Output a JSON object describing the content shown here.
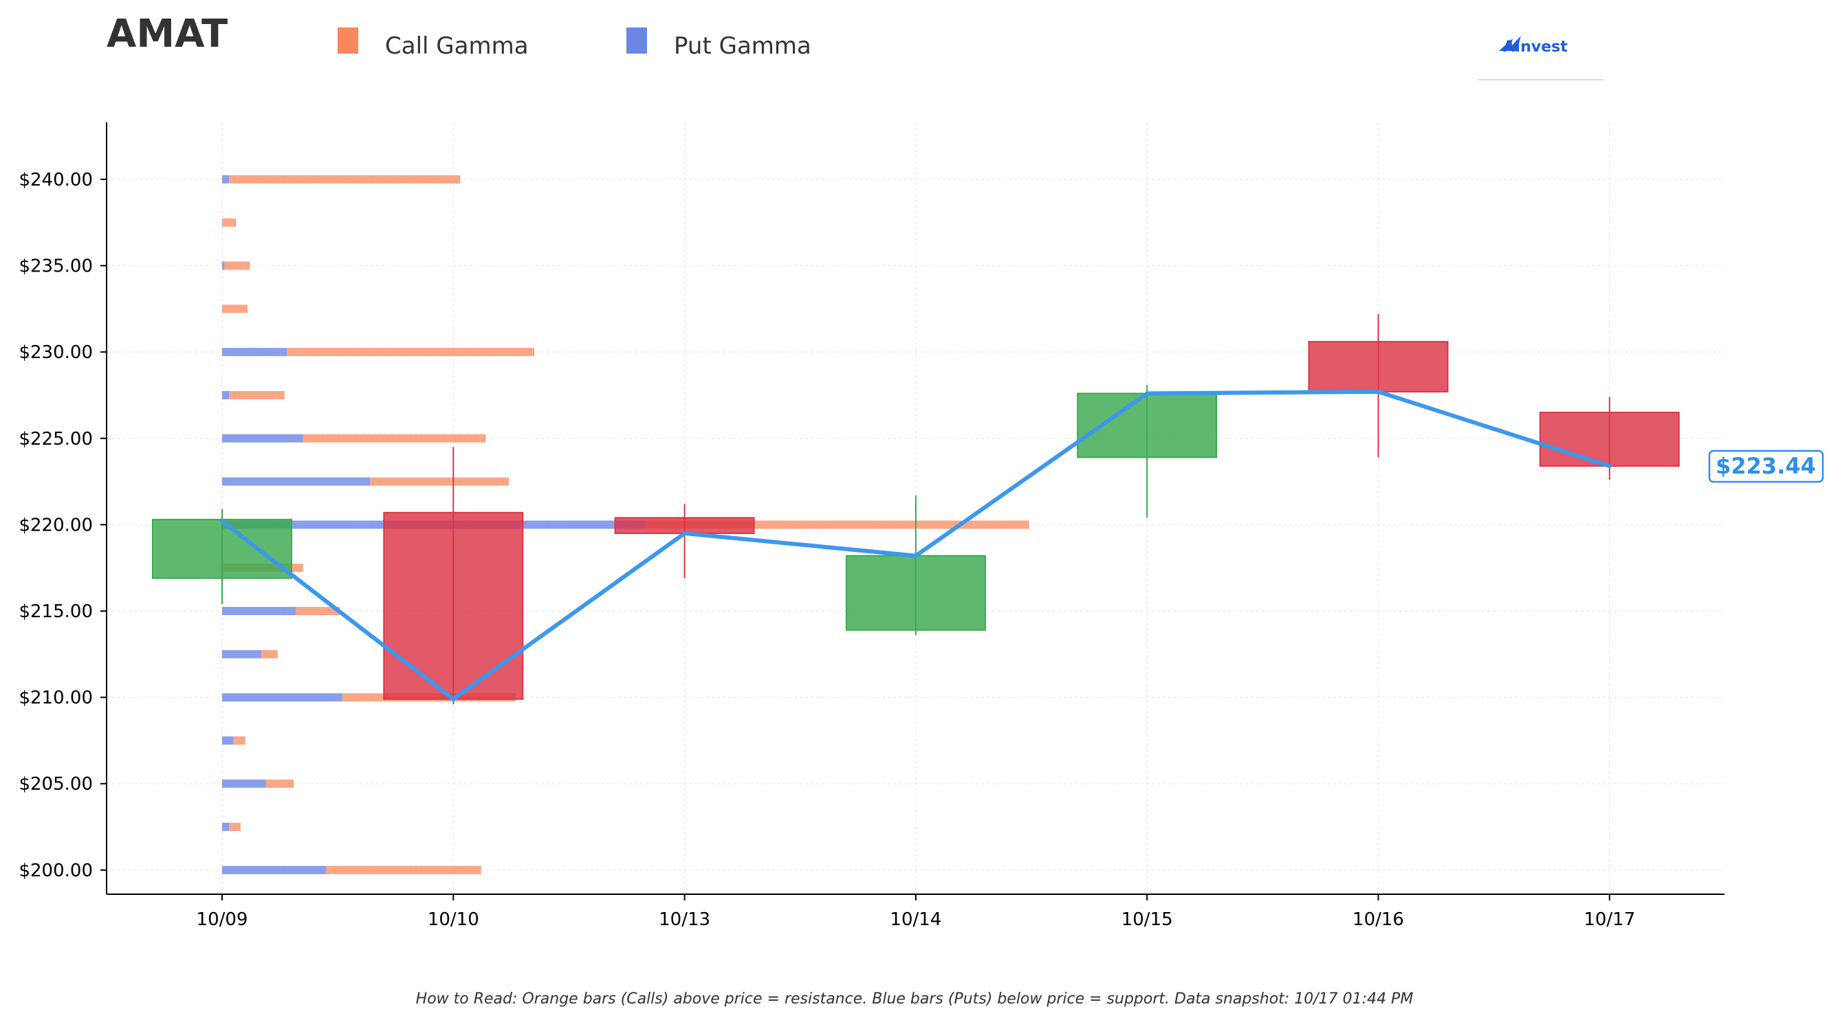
{
  "title": "AMAT",
  "legend": {
    "call_label": "Call Gamma",
    "put_label": "Put Gamma"
  },
  "logo": {
    "text": "AInvest"
  },
  "price_label": "$223.44",
  "footnote": "How to Read: Orange bars (Calls) above price = resistance. Blue bars (Puts) below price = support. Data snapshot: 10/17 01:44 PM",
  "colors": {
    "call": "#f9885c",
    "put": "#6b87e6",
    "up": "#3aaa4f",
    "down": "#dc3545",
    "line": "#3c98ee",
    "price_box": "#2e8fea"
  },
  "chart_data": {
    "type": "candlestick",
    "categories": [
      "10/09",
      "10/10",
      "10/13",
      "10/14",
      "10/15",
      "10/16",
      "10/17"
    ],
    "ylim": [
      198.6,
      243.3
    ],
    "yticks": [
      200,
      205,
      210,
      215,
      220,
      225,
      230,
      235,
      240
    ],
    "ytick_labels": [
      "$200.00",
      "$205.00",
      "$210.00",
      "$215.00",
      "$220.00",
      "$225.00",
      "$230.00",
      "$235.00",
      "$240.00"
    ],
    "candles": [
      {
        "date": "10/09",
        "open": 216.9,
        "close": 220.3,
        "high": 220.9,
        "low": 215.4
      },
      {
        "date": "10/10",
        "open": 220.7,
        "close": 209.9,
        "high": 224.5,
        "low": 209.6
      },
      {
        "date": "10/13",
        "open": 220.4,
        "close": 219.5,
        "high": 221.2,
        "low": 216.9
      },
      {
        "date": "10/14",
        "open": 213.9,
        "close": 218.2,
        "high": 221.7,
        "low": 213.6
      },
      {
        "date": "10/15",
        "open": 223.9,
        "close": 227.6,
        "high": 228.1,
        "low": 220.4
      },
      {
        "date": "10/16",
        "open": 230.6,
        "close": 227.7,
        "high": 232.2,
        "low": 223.9
      },
      {
        "date": "10/17",
        "open": 226.5,
        "close": 223.4,
        "high": 227.4,
        "low": 222.6
      }
    ],
    "close_line": {
      "x": [
        "10/09",
        "10/10",
        "10/13",
        "10/14",
        "10/15",
        "10/16",
        "10/17"
      ],
      "y": [
        220.2,
        209.9,
        219.5,
        218.2,
        227.6,
        227.7,
        223.4
      ]
    },
    "gamma": {
      "x_unit": "category widths from 10/09",
      "strikes": [
        240,
        237.5,
        235,
        232.5,
        230,
        227.5,
        225,
        222.5,
        220,
        217.5,
        215,
        212.5,
        210,
        207.5,
        205,
        202.5,
        200
      ],
      "put": [
        0.03,
        0.0,
        0.01,
        0.0,
        0.28,
        0.03,
        0.35,
        0.64,
        1.83,
        0.0,
        0.32,
        0.17,
        0.52,
        0.05,
        0.19,
        0.03,
        0.45
      ],
      "call": [
        1.0,
        0.06,
        0.11,
        0.11,
        1.07,
        0.24,
        0.79,
        0.6,
        1.66,
        0.35,
        0.19,
        0.07,
        0.75,
        0.05,
        0.12,
        0.05,
        0.67
      ]
    }
  }
}
